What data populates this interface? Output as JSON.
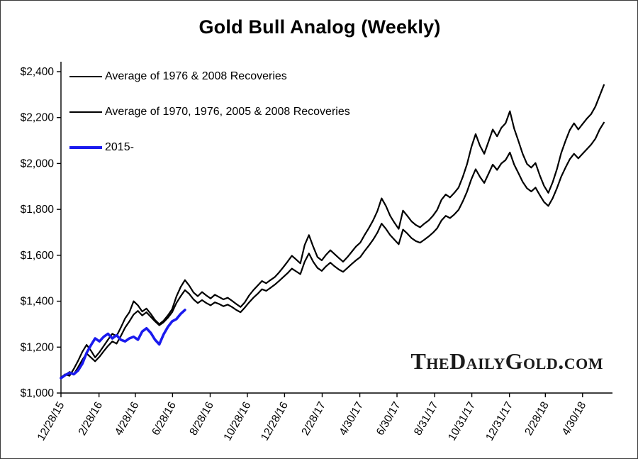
{
  "title": "Gold Bull Analog (Weekly)",
  "watermark": "TheDailyGold.com",
  "chart_data": {
    "type": "line",
    "title": "Gold Bull Analog (Weekly)",
    "xlabel": "",
    "ylabel": "",
    "ylim": [
      1000,
      2400
    ],
    "ytick_step": 200,
    "ytick_prefix": "$",
    "x_domain": [
      0,
      129
    ],
    "x_unit": "weeks since 12/28/15",
    "grid": false,
    "legend_position": "top-left",
    "xticks": [
      {
        "week": 0,
        "label": "12/28/15"
      },
      {
        "week": 8.9,
        "label": "2/28/16"
      },
      {
        "week": 17.4,
        "label": "4/28/16"
      },
      {
        "week": 26.1,
        "label": "6/28/16"
      },
      {
        "week": 34.9,
        "label": "8/28/16"
      },
      {
        "week": 43.6,
        "label": "10/28/16"
      },
      {
        "week": 52.3,
        "label": "12/28/16"
      },
      {
        "week": 61.1,
        "label": "2/28/17"
      },
      {
        "week": 69.9,
        "label": "4/30/17"
      },
      {
        "week": 78.6,
        "label": "6/30/17"
      },
      {
        "week": 87.4,
        "label": "8/31/17"
      },
      {
        "week": 96.1,
        "label": "10/31/17"
      },
      {
        "week": 104.9,
        "label": "12/31/17"
      },
      {
        "week": 113.3,
        "label": "2/28/18"
      },
      {
        "week": 122.0,
        "label": "4/30/18"
      }
    ],
    "series": [
      {
        "name": "Average of 1976 & 2008 Recoveries",
        "color": "#000000",
        "width": 2.2,
        "points": [
          [
            0,
            1068
          ],
          [
            1,
            1082
          ],
          [
            2,
            1075
          ],
          [
            3,
            1105
          ],
          [
            4,
            1140
          ],
          [
            5,
            1180
          ],
          [
            6,
            1210
          ],
          [
            7,
            1185
          ],
          [
            8,
            1155
          ],
          [
            9,
            1178
          ],
          [
            10,
            1205
          ],
          [
            11,
            1232
          ],
          [
            12,
            1258
          ],
          [
            13,
            1248
          ],
          [
            14,
            1285
          ],
          [
            15,
            1325
          ],
          [
            16,
            1352
          ],
          [
            17,
            1400
          ],
          [
            18,
            1382
          ],
          [
            19,
            1355
          ],
          [
            20,
            1368
          ],
          [
            21,
            1345
          ],
          [
            22,
            1318
          ],
          [
            23,
            1300
          ],
          [
            24,
            1315
          ],
          [
            25,
            1338
          ],
          [
            26,
            1365
          ],
          [
            27,
            1420
          ],
          [
            28,
            1462
          ],
          [
            29,
            1492
          ],
          [
            30,
            1468
          ],
          [
            31,
            1438
          ],
          [
            32,
            1422
          ],
          [
            33,
            1440
          ],
          [
            34,
            1425
          ],
          [
            35,
            1412
          ],
          [
            36,
            1428
          ],
          [
            37,
            1418
          ],
          [
            38,
            1408
          ],
          [
            39,
            1415
          ],
          [
            40,
            1402
          ],
          [
            41,
            1388
          ],
          [
            42,
            1375
          ],
          [
            43,
            1395
          ],
          [
            44,
            1425
          ],
          [
            45,
            1448
          ],
          [
            46,
            1468
          ],
          [
            47,
            1488
          ],
          [
            48,
            1478
          ],
          [
            49,
            1492
          ],
          [
            50,
            1505
          ],
          [
            51,
            1525
          ],
          [
            52,
            1548
          ],
          [
            53,
            1572
          ],
          [
            54,
            1598
          ],
          [
            55,
            1582
          ],
          [
            56,
            1565
          ],
          [
            57,
            1645
          ],
          [
            58,
            1688
          ],
          [
            59,
            1638
          ],
          [
            60,
            1592
          ],
          [
            61,
            1578
          ],
          [
            62,
            1602
          ],
          [
            63,
            1622
          ],
          [
            64,
            1605
          ],
          [
            65,
            1588
          ],
          [
            66,
            1572
          ],
          [
            67,
            1592
          ],
          [
            68,
            1615
          ],
          [
            69,
            1638
          ],
          [
            70,
            1655
          ],
          [
            71,
            1688
          ],
          [
            72,
            1718
          ],
          [
            73,
            1752
          ],
          [
            74,
            1792
          ],
          [
            75,
            1848
          ],
          [
            76,
            1815
          ],
          [
            77,
            1772
          ],
          [
            78,
            1742
          ],
          [
            79,
            1715
          ],
          [
            80,
            1795
          ],
          [
            81,
            1772
          ],
          [
            82,
            1748
          ],
          [
            83,
            1732
          ],
          [
            84,
            1722
          ],
          [
            85,
            1738
          ],
          [
            86,
            1752
          ],
          [
            87,
            1772
          ],
          [
            88,
            1798
          ],
          [
            89,
            1842
          ],
          [
            90,
            1865
          ],
          [
            91,
            1852
          ],
          [
            92,
            1872
          ],
          [
            93,
            1895
          ],
          [
            94,
            1942
          ],
          [
            95,
            1998
          ],
          [
            96,
            2072
          ],
          [
            97,
            2128
          ],
          [
            98,
            2078
          ],
          [
            99,
            2042
          ],
          [
            100,
            2095
          ],
          [
            101,
            2148
          ],
          [
            102,
            2118
          ],
          [
            103,
            2155
          ],
          [
            104,
            2175
          ],
          [
            105,
            2228
          ],
          [
            106,
            2152
          ],
          [
            107,
            2098
          ],
          [
            108,
            2042
          ],
          [
            109,
            1998
          ],
          [
            110,
            1982
          ],
          [
            111,
            2002
          ],
          [
            112,
            1948
          ],
          [
            113,
            1902
          ],
          [
            114,
            1872
          ],
          [
            115,
            1918
          ],
          [
            116,
            1975
          ],
          [
            117,
            2045
          ],
          [
            118,
            2098
          ],
          [
            119,
            2145
          ],
          [
            120,
            2175
          ],
          [
            121,
            2148
          ],
          [
            122,
            2172
          ],
          [
            123,
            2195
          ],
          [
            124,
            2215
          ],
          [
            125,
            2248
          ],
          [
            126,
            2295
          ],
          [
            127,
            2342
          ]
        ]
      },
      {
        "name": "Average of 1970, 1976, 2005 & 2008 Recoveries",
        "color": "#000000",
        "width": 2.2,
        "points": [
          [
            0,
            1068
          ],
          [
            1,
            1078
          ],
          [
            2,
            1092
          ],
          [
            3,
            1082
          ],
          [
            4,
            1112
          ],
          [
            5,
            1145
          ],
          [
            6,
            1172
          ],
          [
            7,
            1155
          ],
          [
            8,
            1138
          ],
          [
            9,
            1158
          ],
          [
            10,
            1182
          ],
          [
            11,
            1205
          ],
          [
            12,
            1225
          ],
          [
            13,
            1215
          ],
          [
            14,
            1248
          ],
          [
            15,
            1285
          ],
          [
            16,
            1312
          ],
          [
            17,
            1342
          ],
          [
            18,
            1358
          ],
          [
            19,
            1338
          ],
          [
            20,
            1352
          ],
          [
            21,
            1332
          ],
          [
            22,
            1312
          ],
          [
            23,
            1295
          ],
          [
            24,
            1308
          ],
          [
            25,
            1328
          ],
          [
            26,
            1352
          ],
          [
            27,
            1392
          ],
          [
            28,
            1422
          ],
          [
            29,
            1448
          ],
          [
            30,
            1432
          ],
          [
            31,
            1408
          ],
          [
            32,
            1392
          ],
          [
            33,
            1405
          ],
          [
            34,
            1392
          ],
          [
            35,
            1382
          ],
          [
            36,
            1395
          ],
          [
            37,
            1388
          ],
          [
            38,
            1378
          ],
          [
            39,
            1385
          ],
          [
            40,
            1375
          ],
          [
            41,
            1362
          ],
          [
            42,
            1352
          ],
          [
            43,
            1372
          ],
          [
            44,
            1395
          ],
          [
            45,
            1415
          ],
          [
            46,
            1432
          ],
          [
            47,
            1452
          ],
          [
            48,
            1445
          ],
          [
            49,
            1458
          ],
          [
            50,
            1472
          ],
          [
            51,
            1488
          ],
          [
            52,
            1505
          ],
          [
            53,
            1522
          ],
          [
            54,
            1542
          ],
          [
            55,
            1530
          ],
          [
            56,
            1518
          ],
          [
            57,
            1572
          ],
          [
            58,
            1608
          ],
          [
            59,
            1572
          ],
          [
            60,
            1545
          ],
          [
            61,
            1532
          ],
          [
            62,
            1552
          ],
          [
            63,
            1568
          ],
          [
            64,
            1552
          ],
          [
            65,
            1538
          ],
          [
            66,
            1528
          ],
          [
            67,
            1545
          ],
          [
            68,
            1562
          ],
          [
            69,
            1578
          ],
          [
            70,
            1592
          ],
          [
            71,
            1618
          ],
          [
            72,
            1642
          ],
          [
            73,
            1668
          ],
          [
            74,
            1698
          ],
          [
            75,
            1738
          ],
          [
            76,
            1715
          ],
          [
            77,
            1688
          ],
          [
            78,
            1668
          ],
          [
            79,
            1648
          ],
          [
            80,
            1712
          ],
          [
            81,
            1695
          ],
          [
            82,
            1675
          ],
          [
            83,
            1662
          ],
          [
            84,
            1655
          ],
          [
            85,
            1668
          ],
          [
            86,
            1682
          ],
          [
            87,
            1698
          ],
          [
            88,
            1718
          ],
          [
            89,
            1752
          ],
          [
            90,
            1772
          ],
          [
            91,
            1762
          ],
          [
            92,
            1778
          ],
          [
            93,
            1798
          ],
          [
            94,
            1835
          ],
          [
            95,
            1878
          ],
          [
            96,
            1932
          ],
          [
            97,
            1975
          ],
          [
            98,
            1942
          ],
          [
            99,
            1915
          ],
          [
            100,
            1955
          ],
          [
            101,
            1995
          ],
          [
            102,
            1972
          ],
          [
            103,
            2000
          ],
          [
            104,
            2015
          ],
          [
            105,
            2048
          ],
          [
            106,
            1995
          ],
          [
            107,
            1958
          ],
          [
            108,
            1920
          ],
          [
            109,
            1892
          ],
          [
            110,
            1878
          ],
          [
            111,
            1895
          ],
          [
            112,
            1862
          ],
          [
            113,
            1832
          ],
          [
            114,
            1815
          ],
          [
            115,
            1848
          ],
          [
            116,
            1892
          ],
          [
            117,
            1942
          ],
          [
            118,
            1982
          ],
          [
            119,
            2018
          ],
          [
            120,
            2042
          ],
          [
            121,
            2022
          ],
          [
            122,
            2042
          ],
          [
            123,
            2062
          ],
          [
            124,
            2082
          ],
          [
            125,
            2108
          ],
          [
            126,
            2148
          ],
          [
            127,
            2178
          ]
        ]
      },
      {
        "name": "2015-",
        "color": "#1a1aee",
        "width": 3.6,
        "points": [
          [
            0,
            1065
          ],
          [
            1,
            1078
          ],
          [
            2,
            1088
          ],
          [
            3,
            1082
          ],
          [
            4,
            1098
          ],
          [
            5,
            1128
          ],
          [
            6,
            1175
          ],
          [
            7,
            1208
          ],
          [
            8,
            1238
          ],
          [
            9,
            1225
          ],
          [
            10,
            1245
          ],
          [
            11,
            1258
          ],
          [
            12,
            1238
          ],
          [
            13,
            1252
          ],
          [
            14,
            1232
          ],
          [
            15,
            1225
          ],
          [
            16,
            1238
          ],
          [
            17,
            1245
          ],
          [
            18,
            1232
          ],
          [
            19,
            1268
          ],
          [
            20,
            1282
          ],
          [
            21,
            1262
          ],
          [
            22,
            1232
          ],
          [
            23,
            1212
          ],
          [
            24,
            1255
          ],
          [
            25,
            1288
          ],
          [
            26,
            1312
          ],
          [
            27,
            1322
          ],
          [
            28,
            1345
          ],
          [
            29,
            1362
          ]
        ]
      }
    ]
  }
}
